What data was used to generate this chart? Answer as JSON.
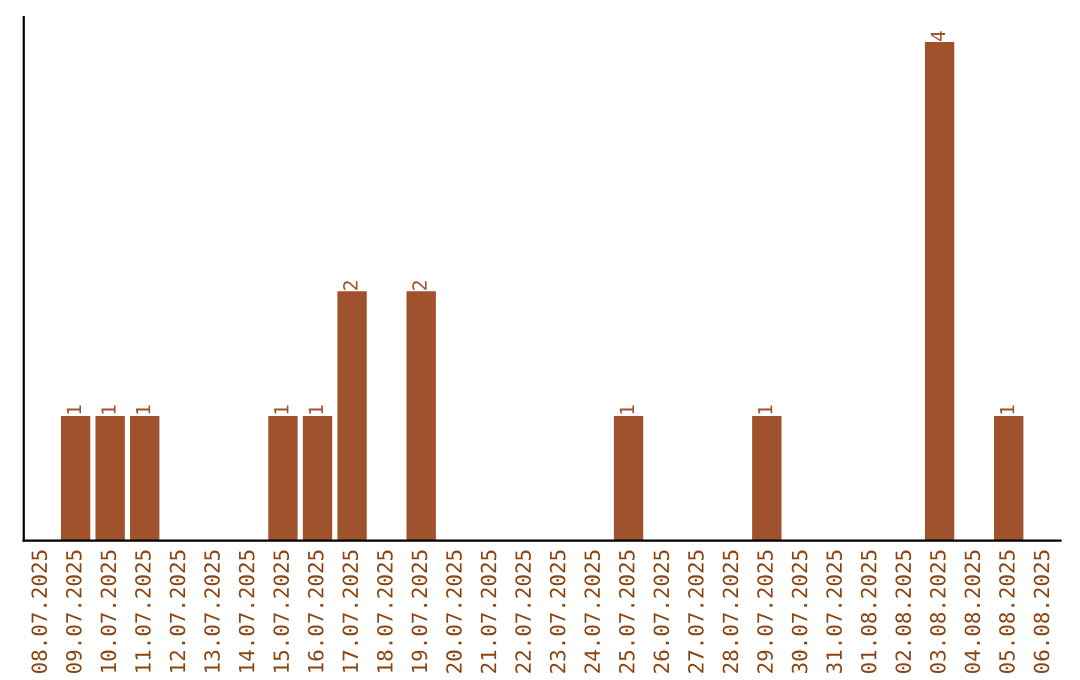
{
  "chart_data": {
    "type": "bar",
    "categories": [
      "08.07.2025",
      "09.07.2025",
      "10.07.2025",
      "11.07.2025",
      "12.07.2025",
      "13.07.2025",
      "14.07.2025",
      "15.07.2025",
      "16.07.2025",
      "17.07.2025",
      "18.07.2025",
      "19.07.2025",
      "20.07.2025",
      "21.07.2025",
      "22.07.2025",
      "23.07.2025",
      "24.07.2025",
      "25.07.2025",
      "26.07.2025",
      "27.07.2025",
      "28.07.2025",
      "29.07.2025",
      "30.07.2025",
      "31.07.2025",
      "01.08.2025",
      "02.08.2025",
      "03.08.2025",
      "04.08.2025",
      "05.08.2025",
      "06.08.2025"
    ],
    "values": [
      0,
      1,
      1,
      1,
      0,
      0,
      0,
      1,
      1,
      2,
      0,
      2,
      0,
      0,
      0,
      0,
      0,
      1,
      0,
      0,
      0,
      1,
      0,
      0,
      0,
      0,
      4,
      0,
      1,
      0
    ],
    "value_labels": [
      null,
      "1",
      "1",
      "1",
      null,
      null,
      null,
      "1",
      "1",
      "2",
      null,
      "2",
      null,
      null,
      null,
      null,
      null,
      "1",
      null,
      null,
      null,
      "1",
      null,
      null,
      null,
      null,
      "4",
      null,
      "1",
      null
    ],
    "color": "#a0522d",
    "tick_labels": "x",
    "grid": false,
    "legend": false
  }
}
